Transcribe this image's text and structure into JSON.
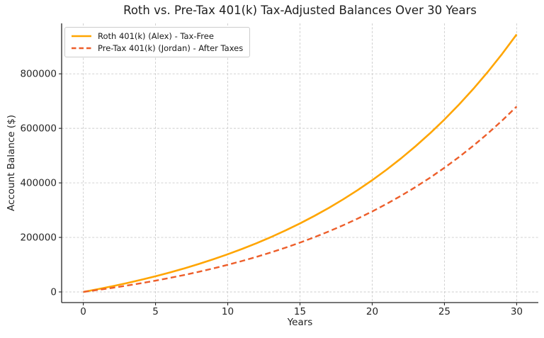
{
  "chart_data": {
    "type": "line",
    "title": "Roth vs. Pre-Tax 401(k) Tax-Adjusted Balances Over 30 Years",
    "xlabel": "Years",
    "ylabel": "Account Balance ($)",
    "x": [
      0,
      1,
      2,
      3,
      4,
      5,
      6,
      7,
      8,
      9,
      10,
      11,
      12,
      13,
      14,
      15,
      16,
      17,
      18,
      19,
      20,
      21,
      22,
      23,
      24,
      25,
      26,
      27,
      28,
      29,
      30
    ],
    "series": [
      {
        "name": "Roth 401(k) (Alex) - Tax-Free",
        "color": "#FFA500",
        "style": "solid",
        "values": [
          0,
          10000,
          20700,
          32149,
          44399,
          57507,
          71533,
          86540,
          102598,
          119780,
          138164,
          157836,
          178885,
          201406,
          225505,
          251290,
          278881,
          308402,
          339990,
          373790,
          409955,
          448652,
          490057,
          534361,
          581767,
          632490,
          686765,
          744838,
          806977,
          873465,
          944608
        ]
      },
      {
        "name": "Pre-Tax 401(k) (Jordan) - After Taxes",
        "color": "#ED5E2A",
        "style": "dashed",
        "values": [
          0,
          7200,
          14904,
          23147,
          31967,
          41405,
          51504,
          62309,
          73871,
          86242,
          99478,
          113642,
          128797,
          145012,
          162364,
          180929,
          200794,
          222049,
          244793,
          269129,
          295168,
          323029,
          352841,
          384740,
          418872,
          455393,
          494471,
          536283,
          581023,
          628895,
          680118
        ]
      }
    ],
    "xlim": [
      -1.5,
      31.5
    ],
    "ylim": [
      -39000,
      985000
    ],
    "xticks": [
      0,
      5,
      10,
      15,
      20,
      25,
      30
    ],
    "yticks": [
      0,
      200000,
      400000,
      600000,
      800000
    ],
    "grid": true,
    "grid_style": "dashed",
    "legend_position": "upper left"
  },
  "colors": {
    "background": "#ffffff",
    "text": "#1f1f1f",
    "tick_text": "#262626",
    "spine": "#262626",
    "gridline": "#cccccc",
    "legend_border": "#cccccc"
  }
}
